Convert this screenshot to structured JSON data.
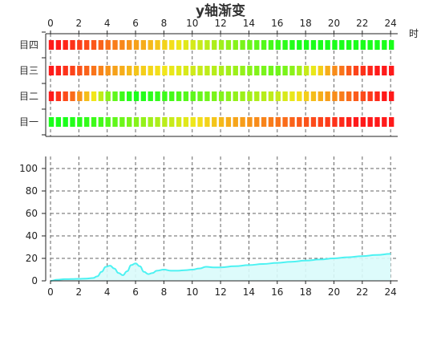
{
  "chart_data": [
    {
      "type": "heatmap",
      "title": "y轴渐变",
      "x_axis_position": "top",
      "x_unit_label": "时",
      "x_ticks": [
        0,
        2,
        4,
        6,
        8,
        10,
        12,
        14,
        16,
        18,
        20,
        22,
        24
      ],
      "xlim": [
        0,
        24.5
      ],
      "categories": [
        "目一",
        "目二",
        "目三",
        "目四"
      ],
      "cell_hours": [
        0,
        0.5,
        1,
        1.5,
        2,
        2.5,
        3,
        3.5,
        4,
        4.5,
        5,
        5.5,
        6,
        6.5,
        7,
        7.5,
        8,
        8.5,
        9,
        9.5,
        10,
        10.5,
        11,
        11.5,
        12,
        12.5,
        13,
        13.5,
        14,
        14.5,
        15,
        15.5,
        16,
        16.5,
        17,
        17.5,
        18,
        18.5,
        19,
        19.5,
        20,
        20.5,
        21,
        21.5,
        22,
        22.5,
        23,
        23.5,
        24
      ],
      "rows": [
        {
          "name": "目一",
          "values": [
            1.0,
            1.0,
            1.0,
            0.98,
            0.96,
            0.94,
            0.92,
            0.9,
            0.87,
            0.84,
            0.81,
            0.78,
            0.75,
            0.72,
            0.69,
            0.66,
            0.63,
            0.6,
            0.57,
            0.54,
            0.51,
            0.48,
            0.45,
            0.42,
            0.39,
            0.36,
            0.34,
            0.32,
            0.3,
            0.28,
            0.26,
            0.24,
            0.22,
            0.2,
            0.18,
            0.16,
            0.14,
            0.12,
            0.1,
            0.08,
            0.06,
            0.04,
            0.02,
            0.0,
            0.0,
            0.0,
            0.0,
            0.0,
            0.0
          ]
        },
        {
          "name": "目二",
          "values": [
            0.0,
            0.06,
            0.12,
            0.2,
            0.3,
            0.4,
            0.5,
            0.62,
            0.74,
            0.84,
            0.92,
            0.97,
            1.0,
            0.98,
            0.96,
            0.94,
            0.92,
            0.9,
            0.88,
            0.86,
            0.84,
            0.82,
            0.8,
            0.78,
            0.76,
            0.74,
            0.72,
            0.7,
            0.68,
            0.66,
            0.64,
            0.62,
            0.6,
            0.56,
            0.52,
            0.48,
            0.44,
            0.4,
            0.36,
            0.32,
            0.28,
            0.24,
            0.2,
            0.16,
            0.12,
            0.08,
            0.04,
            0.0,
            0.0
          ]
        },
        {
          "name": "目三",
          "values": [
            0.0,
            0.02,
            0.06,
            0.1,
            0.14,
            0.18,
            0.22,
            0.26,
            0.3,
            0.33,
            0.36,
            0.39,
            0.42,
            0.44,
            0.46,
            0.48,
            0.5,
            0.52,
            0.54,
            0.56,
            0.58,
            0.6,
            0.62,
            0.64,
            0.66,
            0.68,
            0.7,
            0.72,
            0.74,
            0.76,
            0.78,
            0.8,
            0.8,
            0.78,
            0.74,
            0.68,
            0.6,
            0.52,
            0.44,
            0.36,
            0.28,
            0.22,
            0.16,
            0.1,
            0.06,
            0.03,
            0.0,
            0.0,
            0.0
          ]
        },
        {
          "name": "目四",
          "values": [
            0.0,
            0.0,
            0.03,
            0.06,
            0.09,
            0.12,
            0.15,
            0.18,
            0.21,
            0.24,
            0.27,
            0.3,
            0.33,
            0.36,
            0.39,
            0.42,
            0.45,
            0.48,
            0.51,
            0.54,
            0.57,
            0.6,
            0.63,
            0.66,
            0.69,
            0.72,
            0.75,
            0.78,
            0.81,
            0.84,
            0.87,
            0.9,
            0.93,
            0.96,
            0.98,
            1.0,
            1.0,
            1.0,
            1.0,
            1.0,
            1.0,
            1.0,
            1.0,
            1.0,
            1.0,
            1.0,
            1.0,
            1.0,
            1.0
          ]
        }
      ],
      "colors": {
        "low": "#ff1a1a",
        "mid": "#f2e61a",
        "high": "#1aff1a"
      }
    },
    {
      "type": "area",
      "x_axis_position": "bottom",
      "x_ticks": [
        0,
        2,
        4,
        6,
        8,
        10,
        12,
        14,
        16,
        18,
        20,
        22,
        24
      ],
      "y_ticks": [
        0,
        20,
        40,
        60,
        80,
        100
      ],
      "xlim": [
        0,
        24.5
      ],
      "ylim": [
        0,
        100
      ],
      "grid": true,
      "x": [
        0,
        0.5,
        1,
        1.5,
        2,
        2.5,
        3,
        3.3,
        3.6,
        3.9,
        4.2,
        4.5,
        4.8,
        5.1,
        5.4,
        5.7,
        6,
        6.3,
        6.6,
        6.9,
        7.2,
        7.5,
        8,
        8.5,
        9,
        9.5,
        10,
        10.5,
        11,
        11.5,
        12,
        13,
        14,
        15,
        16,
        17,
        18,
        19,
        20,
        21,
        22,
        23,
        24
      ],
      "values": [
        0,
        1,
        1.5,
        1.6,
        1.8,
        2,
        2.5,
        4,
        8,
        12.5,
        13.5,
        11,
        7,
        5,
        8.5,
        14,
        15.5,
        13,
        8,
        6,
        7,
        9,
        10,
        9,
        9,
        9.5,
        10,
        11,
        12.5,
        12,
        12,
        13,
        14,
        15,
        16,
        17,
        18,
        19,
        20,
        21,
        22,
        23,
        24
      ],
      "colors": {
        "line": "#4df2f2",
        "fill": "#d9fbfb"
      }
    }
  ]
}
